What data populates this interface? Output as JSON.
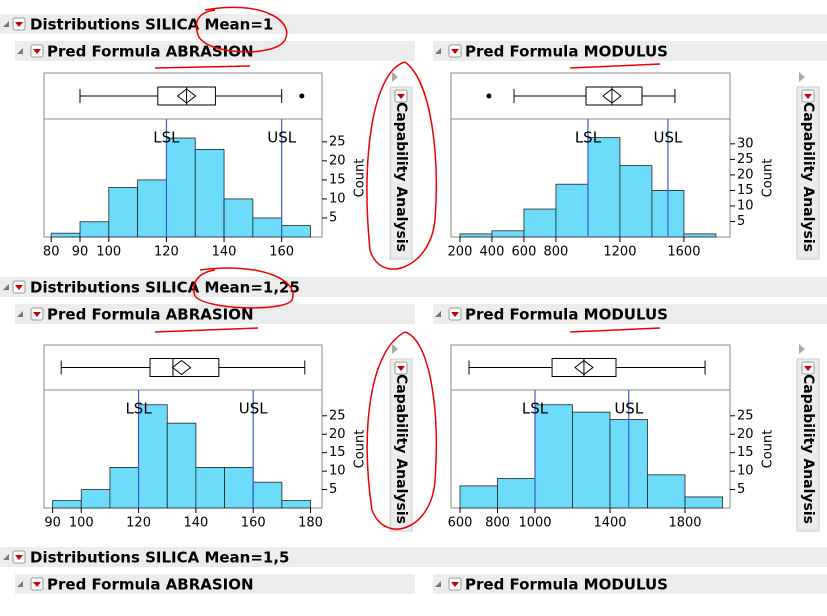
{
  "sections": [
    {
      "title": "Distributions SILICA Mean=1",
      "panels": [
        {
          "title": "Pred Formula ABRASION",
          "bins": [
            80,
            90,
            100,
            110,
            120,
            130,
            140,
            150,
            160,
            170
          ],
          "counts": [
            1,
            4,
            13,
            15,
            26,
            23,
            10,
            5,
            3
          ],
          "xlim": [
            77.5,
            174
          ],
          "xticks": [
            80,
            90,
            100,
            120,
            140,
            160
          ],
          "ylim": [
            0,
            31
          ],
          "yticks": [
            5,
            10,
            15,
            20,
            25
          ],
          "y_label": "Count",
          "spec_limits": [
            {
              "label": "LSL",
              "value": 120
            },
            {
              "label": "USL",
              "value": 160
            }
          ],
          "box": {
            "min": 90,
            "q1": 117,
            "median": 127,
            "q3": 137,
            "max": 160,
            "mean": 127,
            "outliers": [
              167
            ]
          },
          "side_button": "Capability Analysis"
        },
        {
          "title": "Pred Formula MODULUS",
          "bins": [
            200,
            400,
            600,
            800,
            1000,
            1200,
            1400,
            1600,
            1800
          ],
          "counts": [
            1,
            2,
            9,
            17,
            32,
            23,
            15,
            1
          ],
          "xlim": [
            144,
            1888
          ],
          "xticks": [
            200,
            400,
            600,
            800,
            1200,
            1600
          ],
          "ylim": [
            0,
            38
          ],
          "yticks": [
            5,
            10,
            15,
            20,
            25,
            30
          ],
          "y_label": "Count",
          "spec_limits": [
            {
              "label": "LSL",
              "value": 1000
            },
            {
              "label": "USL",
              "value": 1500
            }
          ],
          "box": {
            "min": 538,
            "q1": 988,
            "median": 1150,
            "q3": 1338,
            "max": 1544,
            "mean": 1150,
            "outliers": [
              381
            ]
          },
          "side_button": "Capability Analysis"
        }
      ]
    },
    {
      "title": "Distributions SILICA Mean=1,25",
      "panels": [
        {
          "title": "Pred Formula ABRASION",
          "bins": [
            90,
            100,
            110,
            120,
            130,
            140,
            150,
            160,
            170,
            180
          ],
          "counts": [
            2,
            5,
            11,
            28,
            23,
            11,
            11,
            7,
            2
          ],
          "xlim": [
            87,
            184
          ],
          "xticks": [
            90,
            100,
            120,
            140,
            160,
            180
          ],
          "ylim": [
            0,
            32
          ],
          "yticks": [
            5,
            10,
            15,
            20,
            25
          ],
          "y_label": "Count",
          "spec_limits": [
            {
              "label": "LSL",
              "value": 120
            },
            {
              "label": "USL",
              "value": 160
            }
          ],
          "box": {
            "min": 93,
            "q1": 124,
            "median": 132,
            "q3": 148,
            "max": 178,
            "mean": 135,
            "outliers": []
          },
          "side_button": "Capability Analysis"
        },
        {
          "title": "Pred Formula MODULUS",
          "bins": [
            600,
            800,
            1000,
            1200,
            1400,
            1600,
            1800,
            2000
          ],
          "counts": [
            6,
            8,
            28,
            26,
            24,
            9,
            3
          ],
          "xlim": [
            552,
            2040
          ],
          "xticks": [
            600,
            800,
            1000,
            1400,
            1800
          ],
          "ylim": [
            0,
            32
          ],
          "yticks": [
            5,
            10,
            15,
            20,
            25
          ],
          "y_label": "Count",
          "spec_limits": [
            {
              "label": "LSL",
              "value": 1000
            },
            {
              "label": "USL",
              "value": 1500
            }
          ],
          "box": {
            "min": 648,
            "q1": 1091,
            "median": 1261,
            "q3": 1432,
            "max": 1907,
            "mean": 1261,
            "outliers": []
          },
          "side_button": "Capability Analysis"
        }
      ]
    },
    {
      "title": "Distributions SILICA Mean=1,5",
      "panels": [
        {
          "title": "Pred Formula ABRASION"
        },
        {
          "title": "Pred Formula MODULUS"
        }
      ]
    }
  ]
}
